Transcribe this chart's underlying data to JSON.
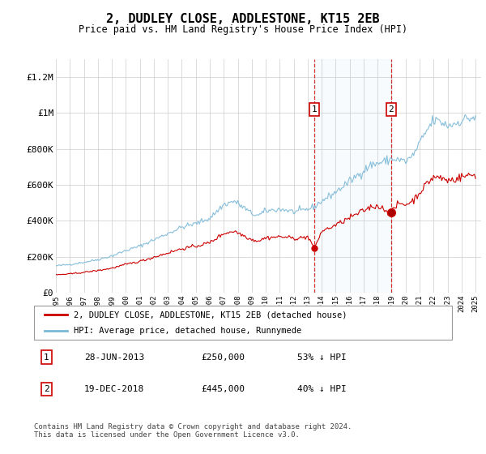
{
  "title": "2, DUDLEY CLOSE, ADDLESTONE, KT15 2EB",
  "subtitle": "Price paid vs. HM Land Registry's House Price Index (HPI)",
  "hpi_label": "HPI: Average price, detached house, Runnymede",
  "property_label": "2, DUDLEY CLOSE, ADDLESTONE, KT15 2EB (detached house)",
  "transaction1_label": "28-JUN-2013",
  "transaction1_value": "£250,000",
  "transaction1_hpi": "53% ↓ HPI",
  "transaction2_label": "19-DEC-2018",
  "transaction2_value": "£445,000",
  "transaction2_hpi": "40% ↓ HPI",
  "footer": "Contains HM Land Registry data © Crown copyright and database right 2024.\nThis data is licensed under the Open Government Licence v3.0.",
  "hpi_color": "#7ab8d8",
  "property_color": "#cc0000",
  "background_color": "#ffffff",
  "ylim": [
    0,
    1300000
  ],
  "yticks": [
    0,
    200000,
    400000,
    600000,
    800000,
    1000000,
    1200000
  ],
  "ytick_labels": [
    "£0",
    "£200K",
    "£400K",
    "£600K",
    "£800K",
    "£1M",
    "£1.2M"
  ],
  "t1_year": 2013.49,
  "t1_price": 250000,
  "t2_year": 2018.96,
  "t2_price": 445000
}
